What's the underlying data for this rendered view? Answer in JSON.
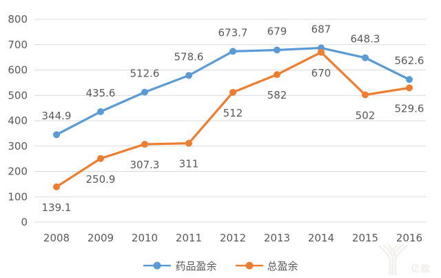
{
  "chart_data": {
    "type": "line",
    "categories": [
      "2008",
      "2009",
      "2010",
      "2011",
      "2012",
      "2013",
      "2014",
      "2015",
      "2016"
    ],
    "series": [
      {
        "name": "药品盈余",
        "color": "#5B9BD5",
        "values": [
          344.9,
          435.6,
          512.6,
          578.6,
          673.7,
          679,
          687,
          648.3,
          562.6
        ],
        "label_position": "above"
      },
      {
        "name": "总盈余",
        "color": "#ED7D31",
        "values": [
          139.1,
          250.9,
          307.3,
          311,
          512,
          582,
          670,
          502,
          529.6
        ],
        "label_position": "below"
      }
    ],
    "title": "",
    "xlabel": "",
    "ylabel": "",
    "ylim": [
      0,
      800
    ],
    "ytick_step": 100,
    "yticks": [
      0,
      100,
      200,
      300,
      400,
      500,
      600,
      700,
      800
    ],
    "grid": true,
    "legend_position": "bottom"
  },
  "colors": {
    "grid": "#D9D9D9",
    "tick_text": "#595959",
    "background": "#FFFFFF"
  },
  "watermark": {
    "text": "亿欧"
  }
}
